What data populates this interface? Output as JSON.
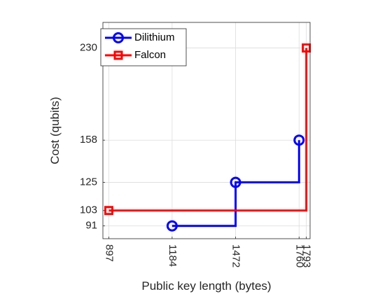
{
  "chart_data": {
    "type": "line",
    "step": true,
    "xlabel": "Public key length (bytes)",
    "ylabel": "Cost (qubits)",
    "xlim": [
      870,
      1810
    ],
    "ylim": [
      81,
      250
    ],
    "xticks": [
      897,
      1184,
      1472,
      1760,
      1793
    ],
    "yticks": [
      91,
      103,
      125,
      158,
      230
    ],
    "grid": true,
    "legend": "top-left",
    "series": [
      {
        "name": "Dilithium",
        "color": "#0000ff",
        "marker": "circle",
        "points": [
          [
            1184,
            91
          ],
          [
            1472,
            125
          ],
          [
            1760,
            158
          ]
        ]
      },
      {
        "name": "Falcon",
        "color": "#ff0000",
        "marker": "square",
        "points": [
          [
            897,
            103
          ],
          [
            1793,
            230
          ]
        ]
      }
    ]
  }
}
